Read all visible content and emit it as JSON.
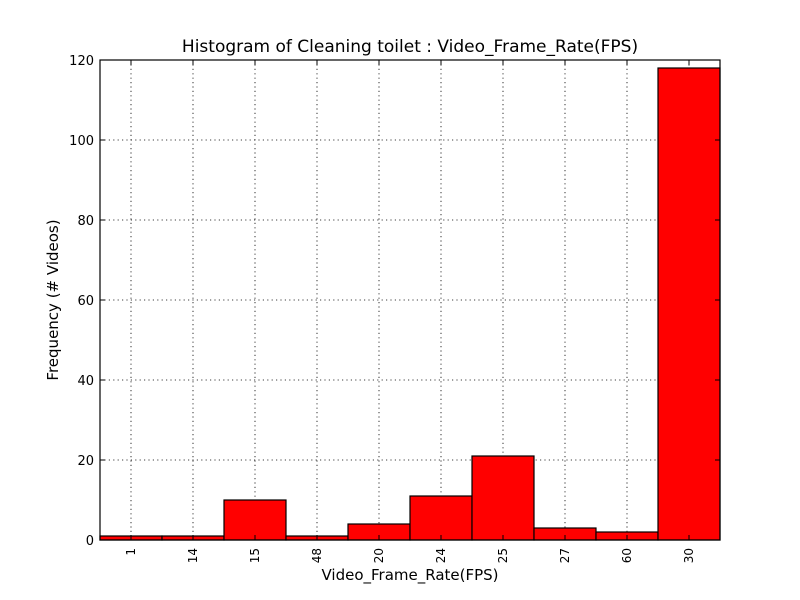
{
  "chart_data": {
    "type": "bar",
    "title": "Histogram of Cleaning toilet : Video_Frame_Rate(FPS)",
    "xlabel": "Video_Frame_Rate(FPS)",
    "ylabel": "Frequency (# Videos)",
    "categories": [
      "1",
      "14",
      "15",
      "48",
      "20",
      "24",
      "25",
      "27",
      "60",
      "30"
    ],
    "values": [
      1,
      1,
      10,
      1,
      4,
      11,
      21,
      3,
      2,
      118
    ],
    "ylim": [
      0,
      120
    ],
    "yticks": [
      "0",
      "20",
      "40",
      "60",
      "80",
      "100",
      "120"
    ],
    "grid": true,
    "bar_color": "#ff0000",
    "edge_color": "#000000"
  }
}
